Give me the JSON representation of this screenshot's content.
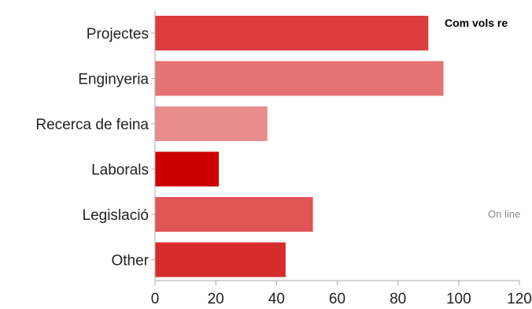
{
  "chart_data": {
    "type": "bar",
    "orientation": "horizontal",
    "title": "Com vols re",
    "categories": [
      "Projectes",
      "Enginyeria",
      "Recerca de feina",
      "Laborals",
      "Legislació",
      "Other"
    ],
    "values": [
      90,
      95,
      37,
      21,
      52,
      43
    ],
    "colors": [
      "#dc3c3c",
      "#e57373",
      "#e88c8c",
      "#cc0000",
      "#e25555",
      "#d62c2c"
    ],
    "xlim": [
      0,
      120
    ],
    "xticks": [
      "0",
      "20",
      "40",
      "60",
      "80",
      "100",
      "120"
    ],
    "grid": false,
    "side_note": "On line"
  }
}
